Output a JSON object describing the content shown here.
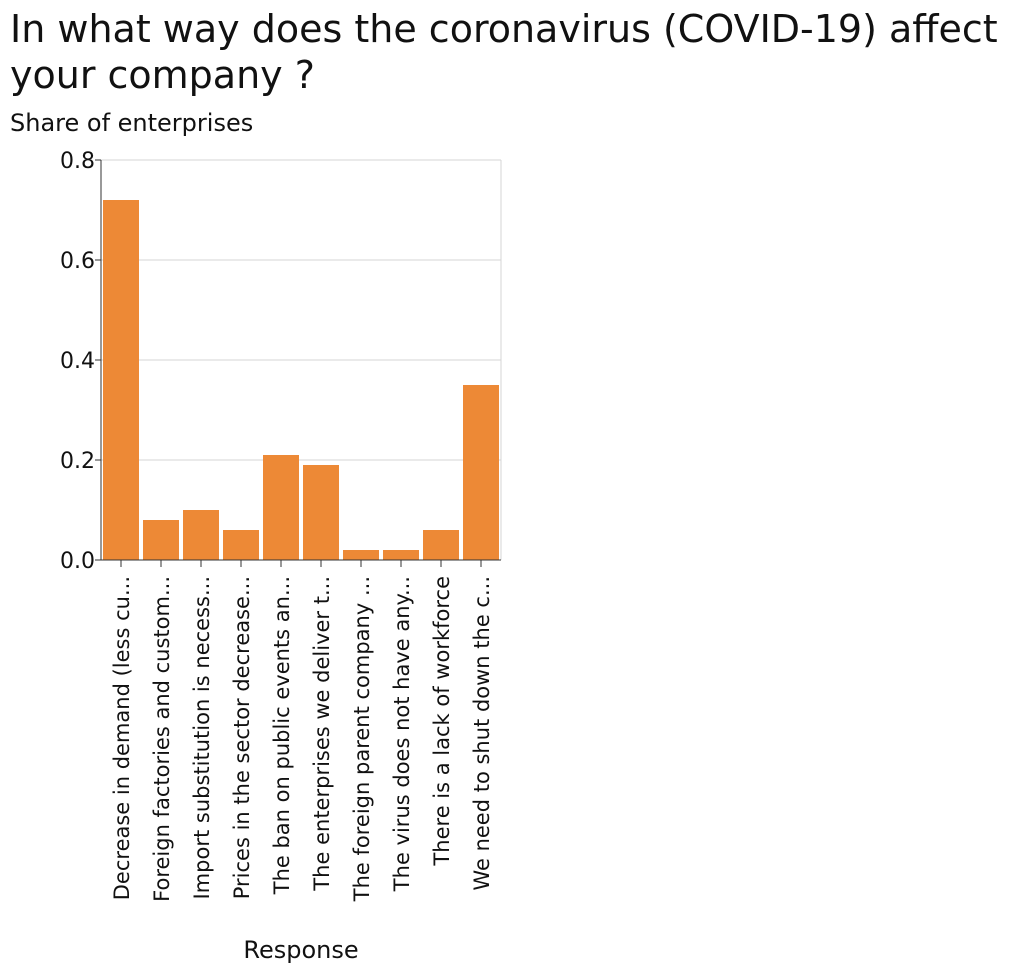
{
  "chart_data": {
    "type": "bar",
    "title": "In what way does the coronavirus (COVID-19) affect your company ?",
    "ylabel": "Share of enterprises",
    "xlabel": "Response",
    "ylim": [
      0,
      0.8
    ],
    "yticks": [
      "0.0",
      "0.2",
      "0.4",
      "0.6",
      "0.8"
    ],
    "grid": true,
    "bar_color": "#ed8936",
    "categories": [
      "Decrease in demand (less cu...",
      "Foreign factories and custom...",
      "Import substitution is necess...",
      "Prices in the sector decrease...",
      "The ban on public events an...",
      "The enterprises we deliver t...",
      "The foreign parent company ...",
      "The virus does not have any...",
      "There is a lack of workforce",
      "We need to shut down the c..."
    ],
    "values": [
      0.72,
      0.08,
      0.1,
      0.06,
      0.21,
      0.19,
      0.02,
      0.02,
      0.06,
      0.35
    ]
  }
}
